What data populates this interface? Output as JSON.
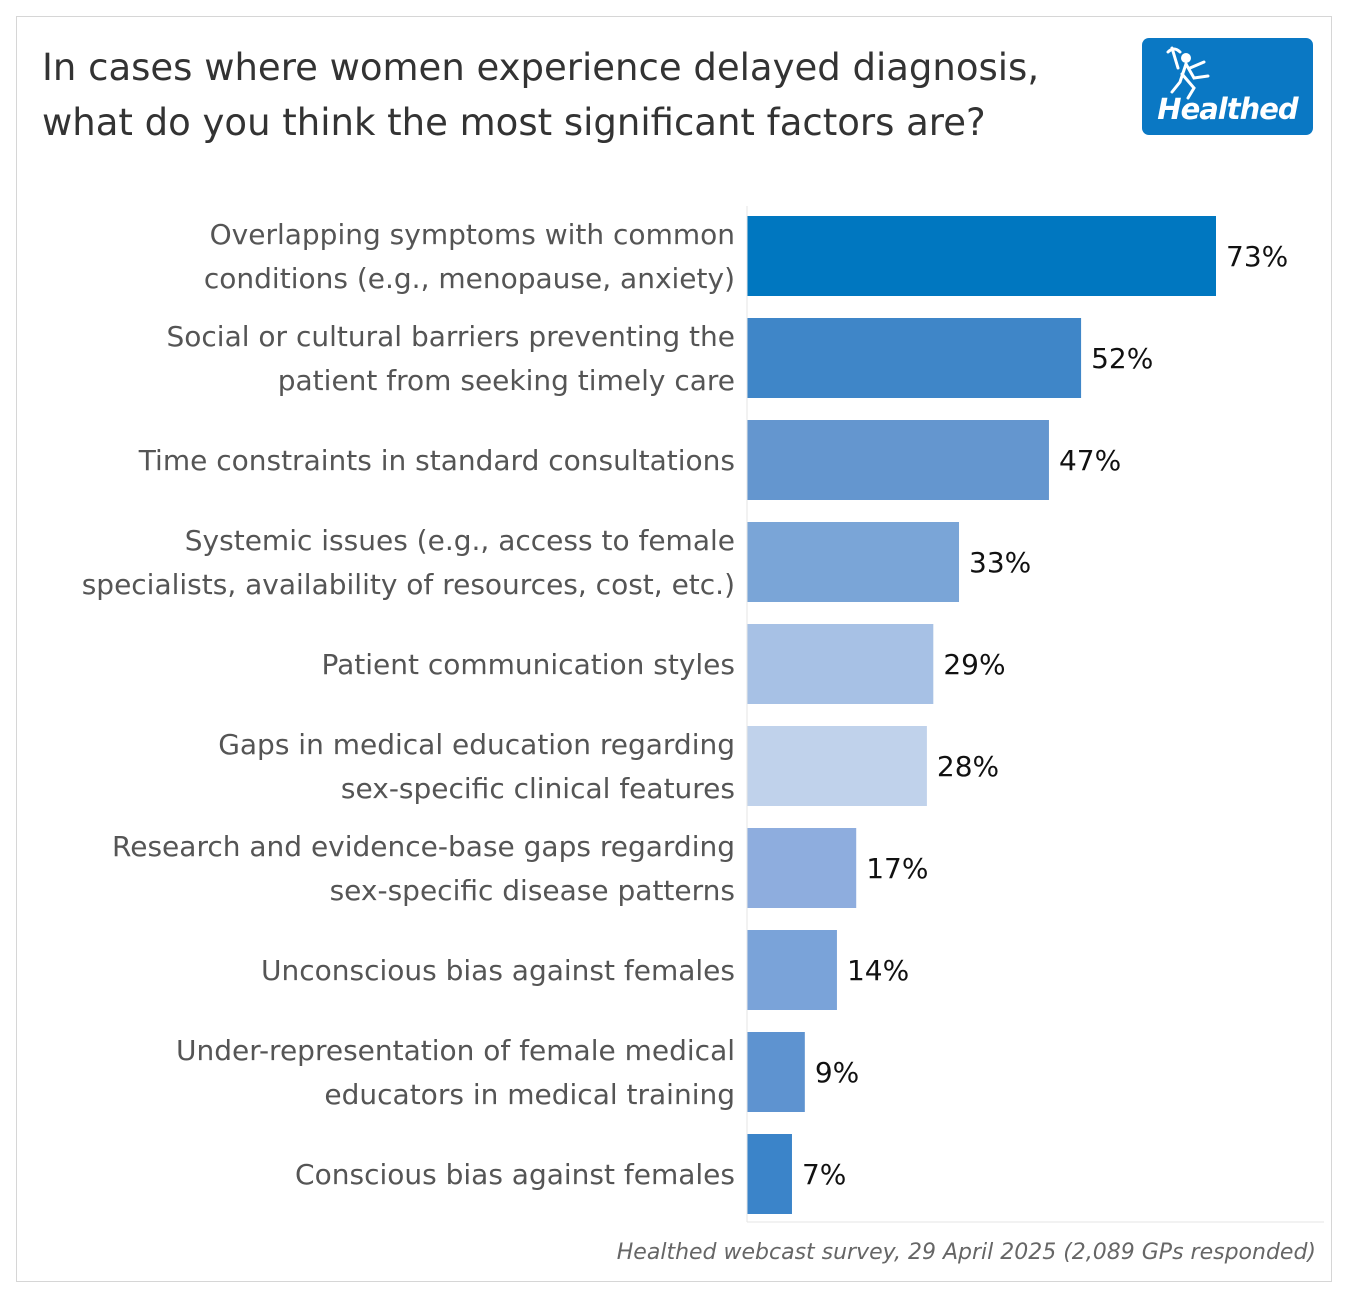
{
  "title": "In cases where women experience delayed diagnosis, what do you think the most significant factors are?",
  "logo": {
    "text": "Healthed",
    "icon": "runner-with-staff-icon",
    "background": "#0a78c4"
  },
  "source": "Healthed webcast survey, 29 April 2025 (2,089 GPs responded)",
  "chart_data": {
    "type": "bar",
    "orientation": "horizontal",
    "categories": [
      [
        "Overlapping symptoms with common",
        "conditions (e.g., menopause, anxiety)"
      ],
      [
        "Social or cultural barriers preventing the",
        "patient from seeking timely care"
      ],
      [
        "Time constraints in standard consultations"
      ],
      [
        "Systemic issues (e.g., access to female",
        "specialists, availability of resources, cost, etc.)"
      ],
      [
        "Patient communication styles"
      ],
      [
        "Gaps in medical education regarding",
        "sex-specific clinical features"
      ],
      [
        "Research and evidence-base gaps regarding",
        "sex-specific disease patterns"
      ],
      [
        "Unconscious bias against females"
      ],
      [
        "Under-representation of female medical",
        "educators in medical training"
      ],
      [
        "Conscious bias against females"
      ]
    ],
    "values": [
      73,
      52,
      47,
      33,
      29,
      28,
      17,
      14,
      9,
      7
    ],
    "value_labels": [
      "73%",
      "52%",
      "47%",
      "33%",
      "29%",
      "28%",
      "17%",
      "14%",
      "9%",
      "7%"
    ],
    "colors": [
      "#0077c0",
      "#3f86c8",
      "#6496cf",
      "#7aa5d7",
      "#a7c1e5",
      "#c0d2eb",
      "#8eadde",
      "#7aa3d9",
      "#5e93d0",
      "#3b84c9"
    ],
    "unit": "%",
    "xlim": [
      0,
      100
    ],
    "grid": false
  }
}
